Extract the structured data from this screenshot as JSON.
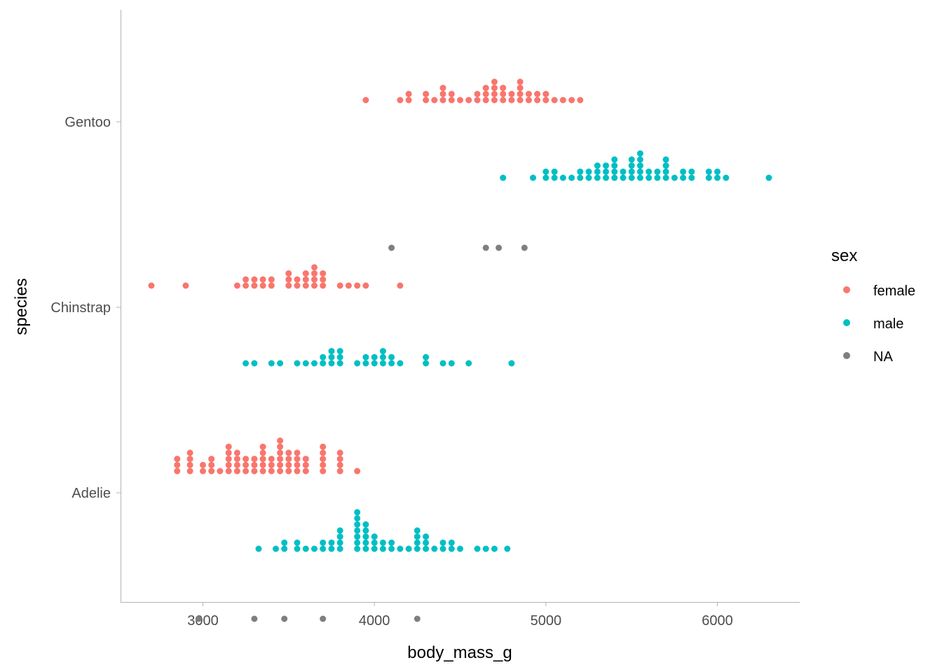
{
  "chart_data": {
    "type": "scatter",
    "subtype": "dotplot",
    "xlabel": "body_mass_g",
    "ylabel": "species",
    "xlim": [
      2520,
      6480
    ],
    "x_ticks": [
      3000,
      4000,
      5000,
      6000
    ],
    "y_categories": [
      "Adelie",
      "Chinstrap",
      "Gentoo"
    ],
    "grid": false,
    "legend": {
      "title": "sex",
      "position": "right"
    },
    "series": [
      {
        "name": "female",
        "color": "#F8766D",
        "groups": [
          {
            "species": "Adelie",
            "bins": [
              [
                2850,
                3
              ],
              [
                2925,
                4
              ],
              [
                3000,
                2
              ],
              [
                3050,
                3
              ],
              [
                3100,
                1
              ],
              [
                3150,
                5
              ],
              [
                3200,
                4
              ],
              [
                3250,
                3
              ],
              [
                3300,
                3
              ],
              [
                3350,
                5
              ],
              [
                3400,
                3
              ],
              [
                3450,
                6
              ],
              [
                3500,
                4
              ],
              [
                3550,
                4
              ],
              [
                3600,
                3
              ],
              [
                3700,
                5
              ],
              [
                3800,
                4
              ],
              [
                3900,
                1
              ]
            ]
          },
          {
            "species": "Chinstrap",
            "bins": [
              [
                2700,
                1
              ],
              [
                2900,
                1
              ],
              [
                3200,
                1
              ],
              [
                3250,
                2
              ],
              [
                3300,
                2
              ],
              [
                3350,
                2
              ],
              [
                3400,
                2
              ],
              [
                3500,
                3
              ],
              [
                3550,
                2
              ],
              [
                3600,
                3
              ],
              [
                3650,
                4
              ],
              [
                3700,
                3
              ],
              [
                3800,
                1
              ],
              [
                3850,
                1
              ],
              [
                3900,
                1
              ],
              [
                3950,
                1
              ],
              [
                4150,
                1
              ]
            ]
          },
          {
            "species": "Gentoo",
            "bins": [
              [
                3950,
                1
              ],
              [
                4150,
                1
              ],
              [
                4200,
                2
              ],
              [
                4300,
                2
              ],
              [
                4350,
                1
              ],
              [
                4400,
                3
              ],
              [
                4450,
                2
              ],
              [
                4500,
                1
              ],
              [
                4550,
                1
              ],
              [
                4600,
                2
              ],
              [
                4650,
                3
              ],
              [
                4700,
                4
              ],
              [
                4750,
                3
              ],
              [
                4800,
                2
              ],
              [
                4850,
                4
              ],
              [
                4900,
                2
              ],
              [
                4950,
                2
              ],
              [
                5000,
                2
              ],
              [
                5050,
                1
              ],
              [
                5100,
                1
              ],
              [
                5150,
                1
              ],
              [
                5200,
                1
              ]
            ]
          }
        ]
      },
      {
        "name": "male",
        "color": "#00BFC4",
        "groups": [
          {
            "species": "Adelie",
            "bins": [
              [
                3325,
                1
              ],
              [
                3425,
                1
              ],
              [
                3475,
                2
              ],
              [
                3550,
                2
              ],
              [
                3600,
                1
              ],
              [
                3650,
                1
              ],
              [
                3700,
                2
              ],
              [
                3750,
                2
              ],
              [
                3800,
                4
              ],
              [
                3900,
                7
              ],
              [
                3950,
                5
              ],
              [
                4000,
                3
              ],
              [
                4050,
                2
              ],
              [
                4100,
                2
              ],
              [
                4150,
                1
              ],
              [
                4200,
                1
              ],
              [
                4250,
                4
              ],
              [
                4300,
                3
              ],
              [
                4350,
                1
              ],
              [
                4400,
                2
              ],
              [
                4450,
                2
              ],
              [
                4500,
                1
              ],
              [
                4600,
                1
              ],
              [
                4650,
                1
              ],
              [
                4700,
                1
              ],
              [
                4775,
                1
              ]
            ]
          },
          {
            "species": "Chinstrap",
            "bins": [
              [
                3250,
                1
              ],
              [
                3300,
                1
              ],
              [
                3400,
                1
              ],
              [
                3450,
                1
              ],
              [
                3550,
                1
              ],
              [
                3600,
                1
              ],
              [
                3650,
                1
              ],
              [
                3700,
                2
              ],
              [
                3750,
                3
              ],
              [
                3800,
                3
              ],
              [
                3900,
                1
              ],
              [
                3950,
                2
              ],
              [
                4000,
                2
              ],
              [
                4050,
                3
              ],
              [
                4100,
                2
              ],
              [
                4150,
                1
              ],
              [
                4300,
                2
              ],
              [
                4400,
                1
              ],
              [
                4450,
                1
              ],
              [
                4550,
                1
              ],
              [
                4800,
                1
              ]
            ]
          },
          {
            "species": "Gentoo",
            "bins": [
              [
                4750,
                1
              ],
              [
                4925,
                1
              ],
              [
                5000,
                2
              ],
              [
                5050,
                2
              ],
              [
                5100,
                1
              ],
              [
                5150,
                1
              ],
              [
                5200,
                2
              ],
              [
                5250,
                2
              ],
              [
                5300,
                3
              ],
              [
                5350,
                3
              ],
              [
                5400,
                4
              ],
              [
                5450,
                2
              ],
              [
                5500,
                4
              ],
              [
                5550,
                5
              ],
              [
                5600,
                2
              ],
              [
                5650,
                2
              ],
              [
                5700,
                4
              ],
              [
                5750,
                1
              ],
              [
                5800,
                2
              ],
              [
                5850,
                2
              ],
              [
                5950,
                2
              ],
              [
                6000,
                2
              ],
              [
                6050,
                1
              ],
              [
                6300,
                1
              ]
            ]
          }
        ]
      },
      {
        "name": "NA",
        "color": "#7F7F7F",
        "groups": [
          {
            "species": "Adelie",
            "bins": [
              [
                2975,
                1
              ],
              [
                3300,
                1
              ],
              [
                3475,
                1
              ],
              [
                3700,
                1
              ],
              [
                4250,
                1
              ]
            ]
          },
          {
            "species": "Chinstrap",
            "bins": []
          },
          {
            "species": "Gentoo",
            "bins": [
              [
                4100,
                1
              ],
              [
                4650,
                1
              ],
              [
                4725,
                1
              ],
              [
                4875,
                1
              ]
            ]
          }
        ]
      }
    ]
  }
}
